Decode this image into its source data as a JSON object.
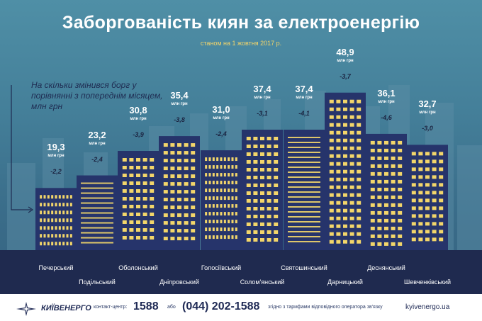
{
  "title": "Заборгованість киян за електроенергію",
  "subtitle": "станом на 1 жовтня 2017 р.",
  "note": "На скільки змінився борг у порівнянні з попереднім місяцем, млн грн",
  "chart_data": {
    "type": "bar",
    "title": "Заборгованість киян за електроенергію",
    "subtitle": "станом на 1 жовтня 2017 р.",
    "unit": "млн грн",
    "categories": [
      "Печерський",
      "Подільський",
      "Оболонський",
      "Дніпровський",
      "Голосіївський",
      "Солом'янський",
      "Святошинський",
      "Дарницький",
      "Деснянський",
      "Шевченківський"
    ],
    "values": [
      19.3,
      23.2,
      30.8,
      35.4,
      31.0,
      37.4,
      37.4,
      48.9,
      36.1,
      32.7
    ],
    "value_labels": [
      "19,3",
      "23,2",
      "30,8",
      "35,4",
      "31,0",
      "37,4",
      "37,4",
      "48,9",
      "36,1",
      "32,7"
    ],
    "changes": [
      -2.2,
      -2.4,
      -3.9,
      -3.8,
      -2.4,
      -3.1,
      -4.1,
      -3.7,
      -4.6,
      -3.0
    ],
    "change_labels": [
      "-2,2",
      "-2,4",
      "-3,9",
      "-3,8",
      "-2,4",
      "-3,1",
      "-4,1",
      "-3,7",
      "-4,6",
      "-3,0"
    ],
    "series": [
      {
        "name": "",
        "values": [
          19.3,
          23.2,
          30.8,
          35.4,
          31.0,
          37.4,
          37.4,
          48.9,
          36.1,
          32.7
        ]
      },
      {
        "name": "На скільки змінився борг у порівнянні з попереднім місяцем, млн грн",
        "values": [
          -2.2,
          -2.4,
          -3.9,
          -3.8,
          -2.4,
          -3.1,
          -4.1,
          -3.7,
          -4.6,
          -3.0
        ]
      }
    ],
    "grid": false
  },
  "footer": {
    "logo_text": "КИЇВЕНЕРГО",
    "contact_label": "контакт-центр:",
    "short_number": "1588",
    "or_text": "або",
    "long_number": "(044) 202-1588",
    "tariff_text": "згідно з тарифами відповідного оператора зв'язку",
    "site": "kyivenergo.ua"
  },
  "colors": {
    "sky_top": "#4f8fa6",
    "sky_bottom": "#35607e",
    "building": "#26346b",
    "window_lit": "#f3d66a",
    "window_pink": "#f0a8a0",
    "ground": "#1f2a4f",
    "value_text": "#ffffff",
    "change_text": "#1b2340"
  }
}
